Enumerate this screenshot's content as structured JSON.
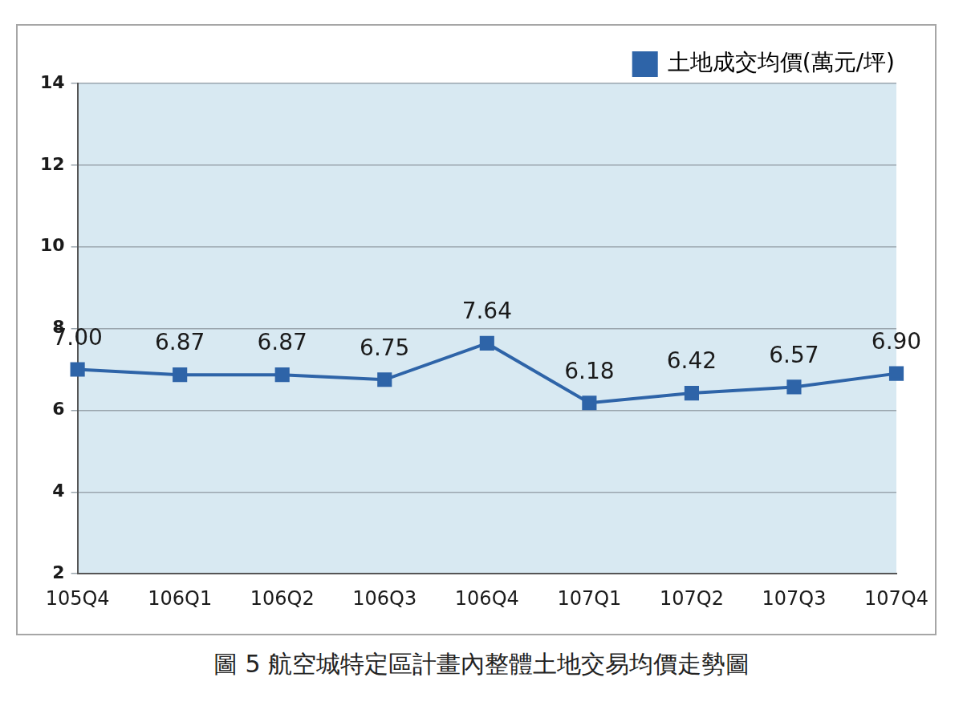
{
  "chart_data": {
    "type": "line",
    "title": "圖 5 航空城特定區計畫內整體土地交易均價走勢圖",
    "categories": [
      "105Q4",
      "106Q1",
      "106Q2",
      "106Q3",
      "106Q4",
      "107Q1",
      "107Q2",
      "107Q3",
      "107Q4"
    ],
    "series": [
      {
        "name": "土地成交均價(萬元/坪)",
        "color": "#2e64a8",
        "marker": "square",
        "values": [
          7.0,
          6.87,
          6.87,
          6.75,
          7.64,
          6.18,
          6.42,
          6.57,
          6.9
        ],
        "value_labels": [
          "7.00",
          "6.87",
          "6.87",
          "6.75",
          "7.64",
          "6.18",
          "6.42",
          "6.57",
          "6.90"
        ]
      }
    ],
    "ylim": [
      2,
      14
    ],
    "yticks": [
      2,
      4,
      6,
      8,
      10,
      12,
      14
    ],
    "grid": true,
    "legend": "upper right",
    "data_labels": true
  }
}
